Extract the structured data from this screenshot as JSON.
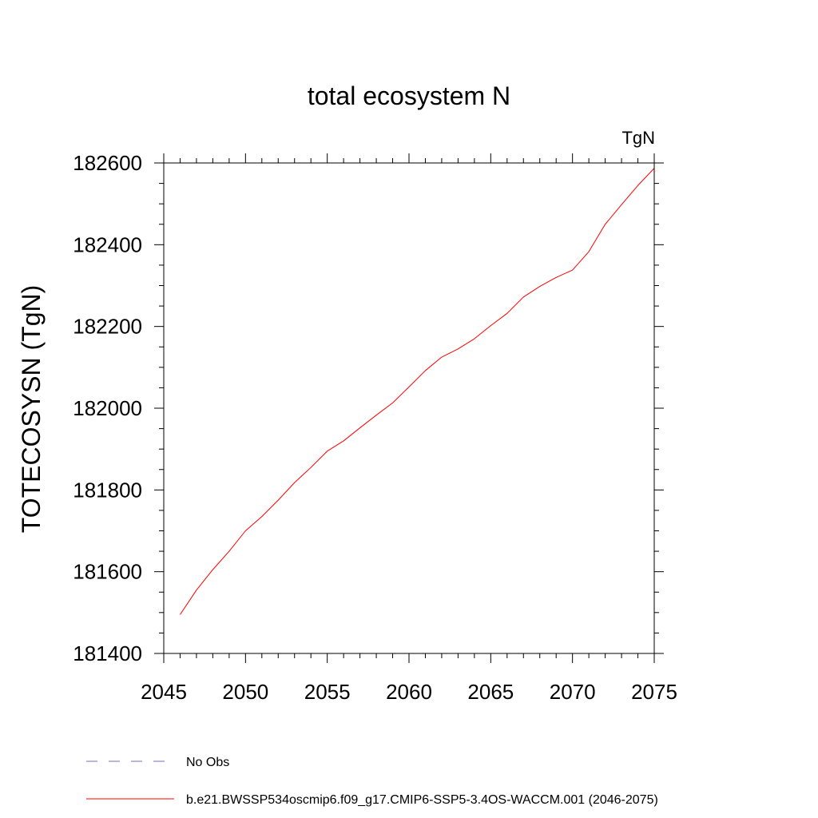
{
  "chart_data": {
    "type": "line",
    "title": "total ecosystem N",
    "units_label": "TgN",
    "xlabel": "",
    "ylabel": "TOTECOSYSN  (TgN)",
    "xlim": [
      2045,
      2075
    ],
    "ylim": [
      181400,
      182600
    ],
    "x_major_ticks": [
      2045,
      2050,
      2055,
      2060,
      2065,
      2070,
      2075
    ],
    "x_minor_step": 1,
    "y_major_ticks": [
      181400,
      181600,
      181800,
      182000,
      182200,
      182400,
      182600
    ],
    "y_minor_step": 50,
    "grid": false,
    "legend_position": "bottom",
    "series": [
      {
        "name": "b.e21.BWSSP534oscmip6.f09_g17.CMIP6-SSP5-3.4OS-WACCM.001 (2046-2075)",
        "color": "#ff0000",
        "dash": "solid",
        "x": [
          2046,
          2047,
          2048,
          2049,
          2050,
          2051,
          2052,
          2053,
          2054,
          2055,
          2056,
          2057,
          2058,
          2059,
          2060,
          2061,
          2062,
          2063,
          2064,
          2065,
          2066,
          2067,
          2068,
          2069,
          2070,
          2071,
          2072,
          2073,
          2074,
          2075
        ],
        "values": [
          181495,
          181555,
          181605,
          181650,
          181700,
          181735,
          181775,
          181818,
          181855,
          181895,
          181920,
          181952,
          181983,
          182013,
          182052,
          182092,
          182125,
          182145,
          182170,
          182202,
          182232,
          182272,
          182298,
          182320,
          182338,
          182383,
          182450,
          182498,
          182545,
          182587
        ]
      }
    ],
    "legend": [
      {
        "label": "No Obs",
        "color": "#7a6fb5",
        "dash": "dashed"
      },
      {
        "label": "b.e21.BWSSP534oscmip6.f09_g17.CMIP6-SSP5-3.4OS-WACCM.001 (2046-2075)",
        "color": "#ff0000",
        "dash": "solid"
      }
    ]
  }
}
